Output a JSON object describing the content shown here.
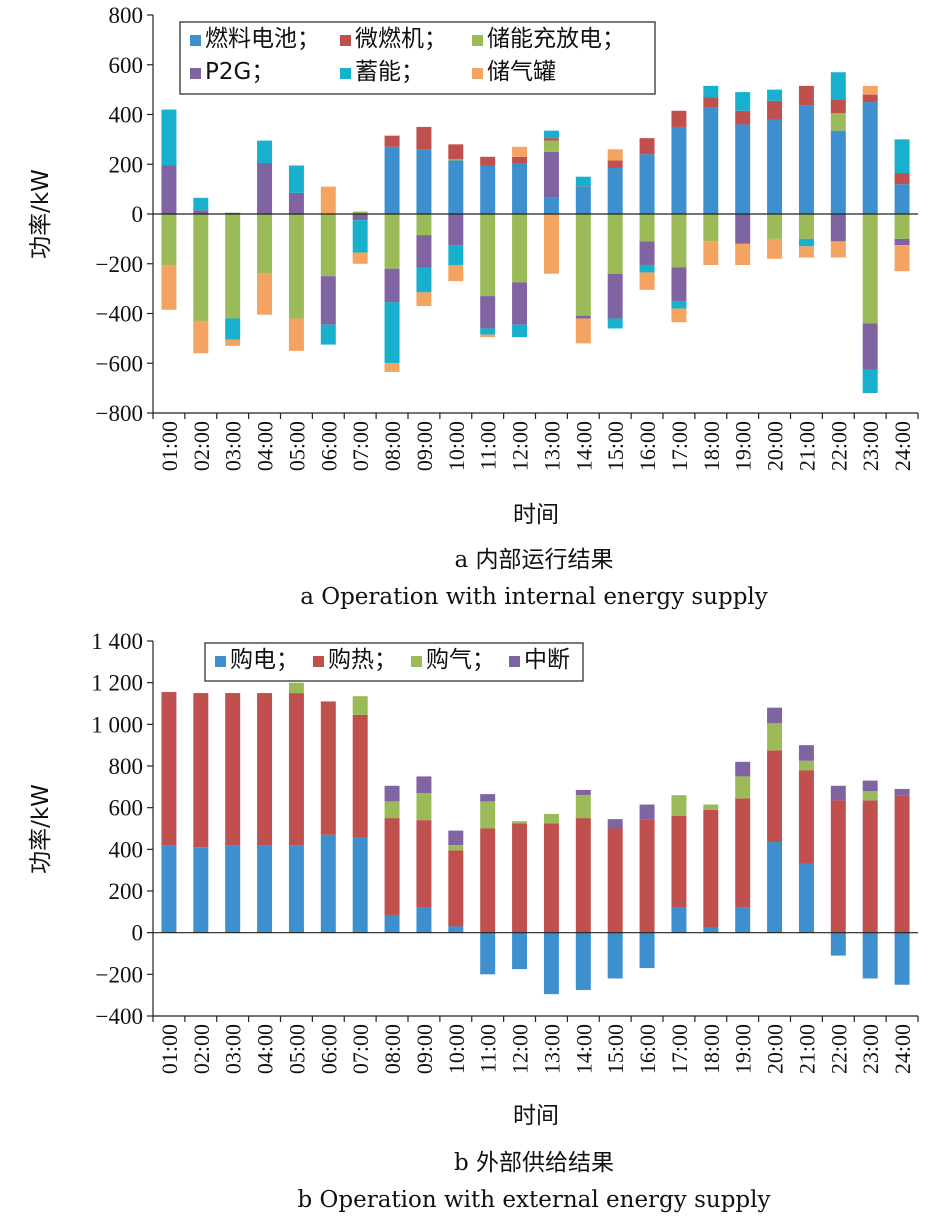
{
  "chart_data": [
    {
      "type": "bar",
      "stacked": true,
      "title": "",
      "caption_cn": "a 内部运行结果",
      "caption_en": "a Operation with internal energy supply",
      "xlabel": "时间",
      "ylabel": "功率/kW",
      "ylim": [
        -800,
        800
      ],
      "yticks": [
        -800,
        -600,
        -400,
        -200,
        0,
        200,
        400,
        600,
        800
      ],
      "ytick_labels": [
        "−800",
        "−600",
        "−400",
        "−200",
        "0",
        "200",
        "400",
        "600",
        "800"
      ],
      "grid": false,
      "legend_position": "top-left",
      "legend_rows": [
        [
          "燃料电池",
          "微燃机",
          "储能充放电"
        ],
        [
          "P2G",
          "蓄能",
          "储气罐"
        ]
      ],
      "categories": [
        "01:00",
        "02:00",
        "03:00",
        "04:00",
        "05:00",
        "06:00",
        "07:00",
        "08:00",
        "09:00",
        "10:00",
        "11:00",
        "12:00",
        "13:00",
        "14:00",
        "15:00",
        "16:00",
        "17:00",
        "18:00",
        "19:00",
        "20:00",
        "21:00",
        "22:00",
        "23:00",
        "24:00"
      ],
      "series": [
        {
          "name": "燃料电池",
          "color": "#3d8fce",
          "values": [
            0,
            0,
            0,
            0,
            0,
            0,
            0,
            270,
            260,
            215,
            195,
            205,
            65,
            105,
            185,
            240,
            350,
            430,
            360,
            380,
            435,
            335,
            450,
            120
          ]
        },
        {
          "name": "微燃机",
          "color": "#c0504d",
          "values": [
            0,
            0,
            0,
            0,
            0,
            0,
            0,
            45,
            90,
            60,
            35,
            25,
            10,
            5,
            30,
            65,
            65,
            40,
            55,
            75,
            80,
            55,
            30,
            45
          ]
        },
        {
          "name": "储能充放电",
          "color": "#9bbb59",
          "values": [
            -205,
            -430,
            -420,
            -240,
            -420,
            -250,
            10,
            -220,
            -85,
            5,
            -330,
            -275,
            45,
            -410,
            -240,
            -110,
            -215,
            -110,
            0,
            -100,
            -100,
            70,
            -440,
            -100
          ]
        },
        {
          "name": "P2G",
          "color": "#8064a2",
          "values": [
            195,
            15,
            5,
            205,
            85,
            -195,
            -25,
            -135,
            -130,
            -125,
            -130,
            -170,
            185,
            -10,
            -180,
            -95,
            -135,
            0,
            -120,
            0,
            0,
            -110,
            -185,
            -25
          ]
        },
        {
          "name": "蓄能",
          "color": "#17b1ce",
          "values": [
            225,
            50,
            -85,
            90,
            110,
            -80,
            -130,
            -245,
            -100,
            -80,
            -25,
            -50,
            30,
            40,
            -40,
            -30,
            -30,
            45,
            75,
            45,
            -30,
            110,
            -95,
            135
          ]
        },
        {
          "name": "储气罐",
          "color": "#f4a460",
          "values": [
            -180,
            -130,
            -25,
            -165,
            -130,
            110,
            -45,
            -35,
            -55,
            -65,
            -10,
            40,
            -240,
            -100,
            45,
            -70,
            -55,
            -95,
            -85,
            -80,
            -45,
            -65,
            35,
            -105
          ]
        }
      ],
      "stack_order": {
        "positive": [
          "燃料电池",
          "P2G",
          "储能充放电",
          "微燃机",
          "蓄能",
          "储气罐"
        ],
        "negative": [
          "储能充放电",
          "P2G",
          "蓄能",
          "储气罐"
        ]
      }
    },
    {
      "type": "bar",
      "stacked": true,
      "title": "",
      "caption_cn": "b 外部供给结果",
      "caption_en": "b Operation with external energy supply",
      "xlabel": "时间",
      "ylabel": "功率/kW",
      "ylim": [
        -400,
        1400
      ],
      "yticks": [
        -400,
        -200,
        0,
        200,
        400,
        600,
        800,
        1000,
        1200,
        1400
      ],
      "ytick_labels": [
        "−400",
        "−200",
        "0",
        "200",
        "400",
        "600",
        "800",
        "1 000",
        "1 200",
        "1 400"
      ],
      "grid": false,
      "legend_position": "top-left",
      "legend_rows": [
        [
          "购电",
          "购热",
          "购气",
          "中断"
        ]
      ],
      "categories": [
        "01:00",
        "02:00",
        "03:00",
        "04:00",
        "05:00",
        "06:00",
        "07:00",
        "08:00",
        "09:00",
        "10:00",
        "11:00",
        "12:00",
        "13:00",
        "14:00",
        "15:00",
        "16:00",
        "17:00",
        "18:00",
        "19:00",
        "20:00",
        "21:00",
        "22:00",
        "23:00",
        "24:00"
      ],
      "series": [
        {
          "name": "购电",
          "color": "#3d8fce",
          "values": [
            420,
            410,
            420,
            420,
            420,
            470,
            455,
            85,
            120,
            30,
            -200,
            -175,
            -295,
            -275,
            -220,
            -170,
            120,
            25,
            120,
            435,
            330,
            -110,
            -220,
            -250
          ]
        },
        {
          "name": "购热",
          "color": "#c0504d",
          "values": [
            735,
            740,
            730,
            730,
            730,
            640,
            590,
            465,
            420,
            365,
            500,
            525,
            525,
            550,
            500,
            545,
            440,
            565,
            525,
            440,
            450,
            635,
            635,
            660
          ]
        },
        {
          "name": "购气",
          "color": "#9bbb59",
          "values": [
            0,
            0,
            0,
            0,
            50,
            0,
            90,
            80,
            130,
            25,
            130,
            10,
            45,
            110,
            0,
            0,
            100,
            25,
            105,
            130,
            45,
            0,
            45,
            0
          ]
        },
        {
          "name": "中断",
          "color": "#8064a2",
          "values": [
            0,
            0,
            0,
            0,
            0,
            0,
            0,
            75,
            80,
            70,
            35,
            0,
            0,
            25,
            45,
            70,
            0,
            0,
            70,
            75,
            75,
            70,
            50,
            30
          ]
        }
      ],
      "stack_order": {
        "positive": [
          "购电",
          "购热",
          "购气",
          "中断"
        ],
        "negative": [
          "购电"
        ]
      }
    }
  ]
}
